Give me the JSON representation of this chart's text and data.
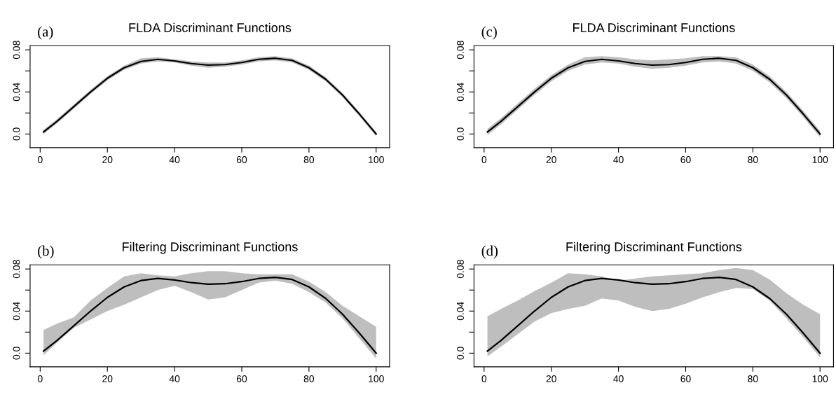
{
  "chart_data": [
    {
      "type": "line",
      "title": "FLDA Discriminant Functions",
      "annotations": [
        "(a)"
      ],
      "xlim": [
        -3,
        104
      ],
      "ylim": [
        -0.013,
        0.084
      ],
      "xticks": [
        0,
        20,
        40,
        60,
        80,
        100
      ],
      "yticks": [
        {
          "value": 0,
          "label": "0.0"
        },
        {
          "value": 0.02,
          "label": null
        },
        {
          "value": 0.04,
          "label": "0.04"
        },
        {
          "value": 0.06,
          "label": null
        },
        {
          "value": 0.08,
          "label": "0.08"
        }
      ],
      "grid": false,
      "legend": false,
      "x": [
        1,
        5,
        10,
        15,
        20,
        25,
        30,
        35,
        40,
        45,
        50,
        55,
        60,
        65,
        70,
        75,
        80,
        85,
        90,
        95,
        100
      ],
      "series": [
        {
          "color": "#bebebe",
          "values": [
            null,
            null,
            null,
            null,
            null,
            null,
            null,
            null,
            null,
            null,
            null,
            null,
            null,
            null,
            null,
            null,
            null,
            null,
            null,
            null,
            null
          ],
          "lower": [
            0.0,
            0.01,
            0.024,
            0.038,
            0.051,
            0.061,
            0.067,
            0.069,
            0.068,
            0.065,
            0.063,
            0.064,
            0.066,
            0.069,
            0.07,
            0.068,
            0.061,
            0.05,
            0.035,
            0.017,
            -0.002
          ],
          "upper": [
            0.004,
            0.014,
            0.028,
            0.042,
            0.055,
            0.065,
            0.072,
            0.073,
            0.071,
            0.069,
            0.068,
            0.068,
            0.07,
            0.073,
            0.074,
            0.072,
            0.065,
            0.054,
            0.039,
            0.021,
            0.002
          ]
        },
        {
          "color": "#000000",
          "values": [
            0.002,
            0.012,
            0.026,
            0.04,
            0.053,
            0.063,
            0.069,
            0.071,
            0.0695,
            0.067,
            0.0655,
            0.066,
            0.068,
            0.071,
            0.072,
            0.07,
            0.063,
            0.052,
            0.037,
            0.019,
            0.0
          ]
        }
      ]
    },
    {
      "type": "line",
      "title": "FLDA Discriminant Functions",
      "annotations": [
        "(c)"
      ],
      "xlim": [
        -3,
        104
      ],
      "ylim": [
        -0.013,
        0.084
      ],
      "xticks": [
        0,
        20,
        40,
        60,
        80,
        100
      ],
      "yticks": [
        {
          "value": 0,
          "label": "0.0"
        },
        {
          "value": 0.02,
          "label": null
        },
        {
          "value": 0.04,
          "label": "0.04"
        },
        {
          "value": 0.06,
          "label": null
        },
        {
          "value": 0.08,
          "label": "0.08"
        }
      ],
      "grid": false,
      "legend": false,
      "x": [
        1,
        5,
        10,
        15,
        20,
        25,
        30,
        35,
        40,
        45,
        50,
        55,
        60,
        65,
        70,
        75,
        80,
        85,
        90,
        95,
        100
      ],
      "series": [
        {
          "color": "#bebebe",
          "values": [
            null,
            null,
            null,
            null,
            null,
            null,
            null,
            null,
            null,
            null,
            null,
            null,
            null,
            null,
            null,
            null,
            null,
            null,
            null,
            null,
            null
          ],
          "lower": [
            -0.001,
            0.009,
            0.023,
            0.037,
            0.05,
            0.06,
            0.066,
            0.068,
            0.067,
            0.064,
            0.062,
            0.063,
            0.065,
            0.068,
            0.069,
            0.067,
            0.06,
            0.049,
            0.034,
            0.016,
            -0.003
          ],
          "upper": [
            0.005,
            0.015,
            0.029,
            0.043,
            0.056,
            0.066,
            0.073,
            0.074,
            0.073,
            0.071,
            0.07,
            0.071,
            0.072,
            0.074,
            0.074,
            0.073,
            0.066,
            0.055,
            0.04,
            0.022,
            0.003
          ]
        },
        {
          "color": "#000000",
          "values": [
            0.002,
            0.012,
            0.026,
            0.04,
            0.053,
            0.063,
            0.069,
            0.071,
            0.0695,
            0.067,
            0.0655,
            0.066,
            0.068,
            0.071,
            0.072,
            0.07,
            0.063,
            0.052,
            0.037,
            0.019,
            0.0
          ]
        }
      ]
    },
    {
      "type": "line",
      "title": "Filtering Discriminant Functions",
      "annotations": [
        "(b)"
      ],
      "xlim": [
        -3,
        104
      ],
      "ylim": [
        -0.013,
        0.084
      ],
      "xticks": [
        0,
        20,
        40,
        60,
        80,
        100
      ],
      "yticks": [
        {
          "value": 0,
          "label": "0.0"
        },
        {
          "value": 0.02,
          "label": null
        },
        {
          "value": 0.04,
          "label": "0.04"
        },
        {
          "value": 0.06,
          "label": null
        },
        {
          "value": 0.08,
          "label": "0.08"
        }
      ],
      "grid": false,
      "legend": false,
      "x": [
        1,
        5,
        10,
        15,
        20,
        25,
        30,
        35,
        40,
        45,
        50,
        55,
        60,
        65,
        70,
        75,
        80,
        85,
        90,
        95,
        100
      ],
      "series": [
        {
          "color": "#bebebe",
          "values": [
            null,
            null,
            null,
            null,
            null,
            null,
            null,
            null,
            null,
            null,
            null,
            null,
            null,
            null,
            null,
            null,
            null,
            null,
            null,
            null,
            null
          ],
          "lower": [
            -0.002,
            0.01,
            0.024,
            0.032,
            0.04,
            0.046,
            0.053,
            0.06,
            0.064,
            0.058,
            0.051,
            0.053,
            0.06,
            0.067,
            0.069,
            0.066,
            0.058,
            0.048,
            0.033,
            0.014,
            -0.005
          ],
          "upper": [
            0.022,
            0.028,
            0.034,
            0.05,
            0.062,
            0.073,
            0.076,
            0.074,
            0.073,
            0.076,
            0.078,
            0.078,
            0.076,
            0.075,
            0.075,
            0.075,
            0.068,
            0.058,
            0.045,
            0.035,
            0.025
          ]
        },
        {
          "color": "#000000",
          "values": [
            0.002,
            0.012,
            0.026,
            0.04,
            0.053,
            0.063,
            0.069,
            0.071,
            0.0695,
            0.067,
            0.0655,
            0.066,
            0.068,
            0.071,
            0.072,
            0.07,
            0.063,
            0.052,
            0.037,
            0.019,
            0.0
          ]
        }
      ]
    },
    {
      "type": "line",
      "title": "Filtering Discriminant Functions",
      "annotations": [
        "(d)"
      ],
      "xlim": [
        -3,
        104
      ],
      "ylim": [
        -0.013,
        0.084
      ],
      "xticks": [
        0,
        20,
        40,
        60,
        80,
        100
      ],
      "yticks": [
        {
          "value": 0,
          "label": "0.0"
        },
        {
          "value": 0.02,
          "label": null
        },
        {
          "value": 0.04,
          "label": "0.04"
        },
        {
          "value": 0.06,
          "label": null
        },
        {
          "value": 0.08,
          "label": "0.08"
        }
      ],
      "grid": false,
      "legend": false,
      "x": [
        1,
        5,
        10,
        15,
        20,
        25,
        30,
        35,
        40,
        45,
        50,
        55,
        60,
        65,
        70,
        75,
        80,
        85,
        90,
        95,
        100
      ],
      "series": [
        {
          "color": "#bebebe",
          "values": [
            null,
            null,
            null,
            null,
            null,
            null,
            null,
            null,
            null,
            null,
            null,
            null,
            null,
            null,
            null,
            null,
            null,
            null,
            null,
            null,
            null
          ],
          "lower": [
            -0.003,
            0.006,
            0.018,
            0.03,
            0.038,
            0.042,
            0.045,
            0.052,
            0.05,
            0.044,
            0.04,
            0.042,
            0.047,
            0.053,
            0.058,
            0.062,
            0.061,
            0.05,
            0.033,
            0.015,
            -0.004
          ],
          "upper": [
            0.035,
            0.042,
            0.05,
            0.059,
            0.067,
            0.076,
            0.075,
            0.073,
            0.069,
            0.071,
            0.073,
            0.074,
            0.075,
            0.076,
            0.079,
            0.081,
            0.079,
            0.07,
            0.057,
            0.046,
            0.037
          ]
        },
        {
          "color": "#000000",
          "values": [
            0.002,
            0.012,
            0.026,
            0.04,
            0.053,
            0.063,
            0.069,
            0.071,
            0.0695,
            0.067,
            0.0655,
            0.066,
            0.068,
            0.071,
            0.072,
            0.07,
            0.063,
            0.052,
            0.037,
            0.019,
            0.0
          ]
        }
      ]
    }
  ]
}
